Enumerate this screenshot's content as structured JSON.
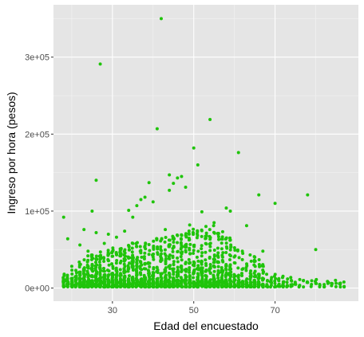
{
  "chart_data": {
    "type": "scatter",
    "title": "",
    "xlabel": "Edad del encuestado",
    "ylabel": "Ingreso por hora (pesos)",
    "xlim": [
      15.5,
      90.5
    ],
    "ylim": [
      -17000,
      368000
    ],
    "x_ticks": [
      30,
      50,
      70
    ],
    "x_tick_labels": [
      "30",
      "50",
      "70"
    ],
    "y_ticks": [
      0,
      100000,
      200000,
      300000
    ],
    "y_tick_labels": [
      "0e+00",
      "1e+05",
      "2e+05",
      "3e+05"
    ],
    "grid": true,
    "point_color": "#1fc40a",
    "panel_background": "#e5e5e5",
    "points": [
      [
        18,
        92000
      ],
      [
        19,
        64000
      ],
      [
        20,
        9000
      ],
      [
        21,
        23000
      ],
      [
        22,
        56000
      ],
      [
        23,
        76000
      ],
      [
        24,
        48000
      ],
      [
        25,
        100000
      ],
      [
        26,
        140000
      ],
      [
        26,
        72000
      ],
      [
        27,
        291000
      ],
      [
        28,
        58000
      ],
      [
        29,
        70000
      ],
      [
        31,
        66000
      ],
      [
        33,
        74000
      ],
      [
        34,
        101000
      ],
      [
        35,
        92000
      ],
      [
        36,
        107000
      ],
      [
        37,
        115000
      ],
      [
        38,
        118000
      ],
      [
        39,
        137000
      ],
      [
        40,
        112000
      ],
      [
        41,
        207000
      ],
      [
        42,
        350000
      ],
      [
        43,
        76000
      ],
      [
        44,
        147000
      ],
      [
        44,
        127000
      ],
      [
        45,
        136000
      ],
      [
        46,
        143000
      ],
      [
        47,
        145000
      ],
      [
        48,
        131000
      ],
      [
        49,
        82000
      ],
      [
        50,
        182000
      ],
      [
        51,
        160000
      ],
      [
        52,
        99000
      ],
      [
        53,
        80000
      ],
      [
        54,
        219000
      ],
      [
        55,
        85000
      ],
      [
        56,
        70000
      ],
      [
        58,
        104000
      ],
      [
        59,
        100000
      ],
      [
        61,
        176000
      ],
      [
        63,
        81000
      ],
      [
        66,
        121000
      ],
      [
        67,
        48000
      ],
      [
        70,
        110000
      ],
      [
        72,
        6000
      ],
      [
        74,
        4000
      ],
      [
        76,
        3000
      ],
      [
        78,
        121000
      ],
      [
        80,
        50000
      ],
      [
        80,
        6000
      ],
      [
        83,
        6000
      ],
      [
        86,
        5000
      ]
    ]
  }
}
